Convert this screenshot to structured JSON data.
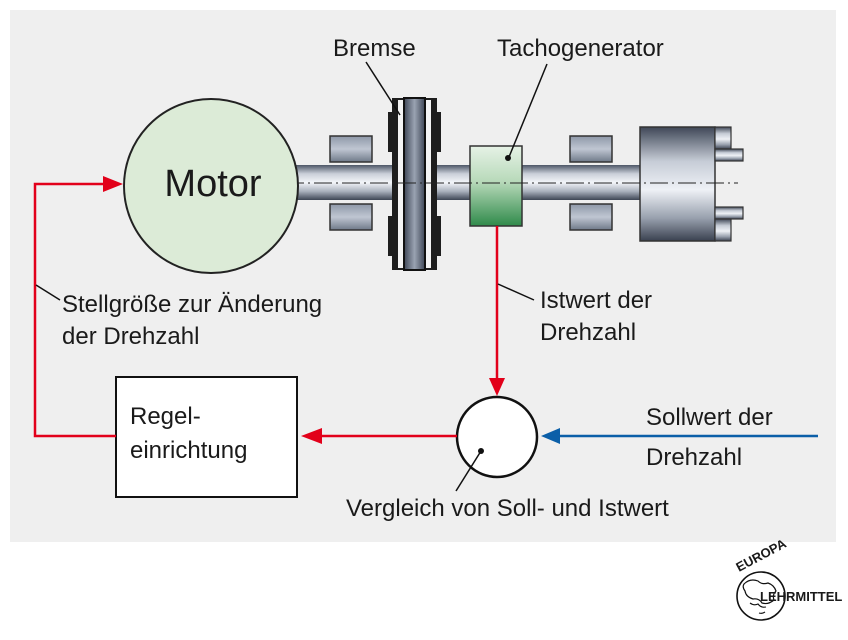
{
  "labels": {
    "bremse": "Bremse",
    "tachogenerator": "Tachogenerator",
    "motor": "Motor",
    "stellgroesse_line1": "Stellgröße zur Änderung",
    "stellgroesse_line2": "der Drehzahl",
    "istwert_line1": "Istwert der",
    "istwert_line2": "Drehzahl",
    "regel_line1": "Regel-",
    "regel_line2": "einrichtung",
    "sollwert_line1": "Sollwert der",
    "sollwert_line2": "Drehzahl",
    "vergleich": "Vergleich von Soll- und Istwert"
  },
  "logo": {
    "top_text": "EUROPA",
    "side_text": "LEHRMITTEL"
  },
  "colors": {
    "panel": "#efefef",
    "motor_fill": "#dcebd7",
    "feedback_line": "#e2001a",
    "setpoint_line": "#0b5fa8",
    "tacho_top": "#e6f2e6",
    "tacho_bottom": "#2f8a4a"
  }
}
